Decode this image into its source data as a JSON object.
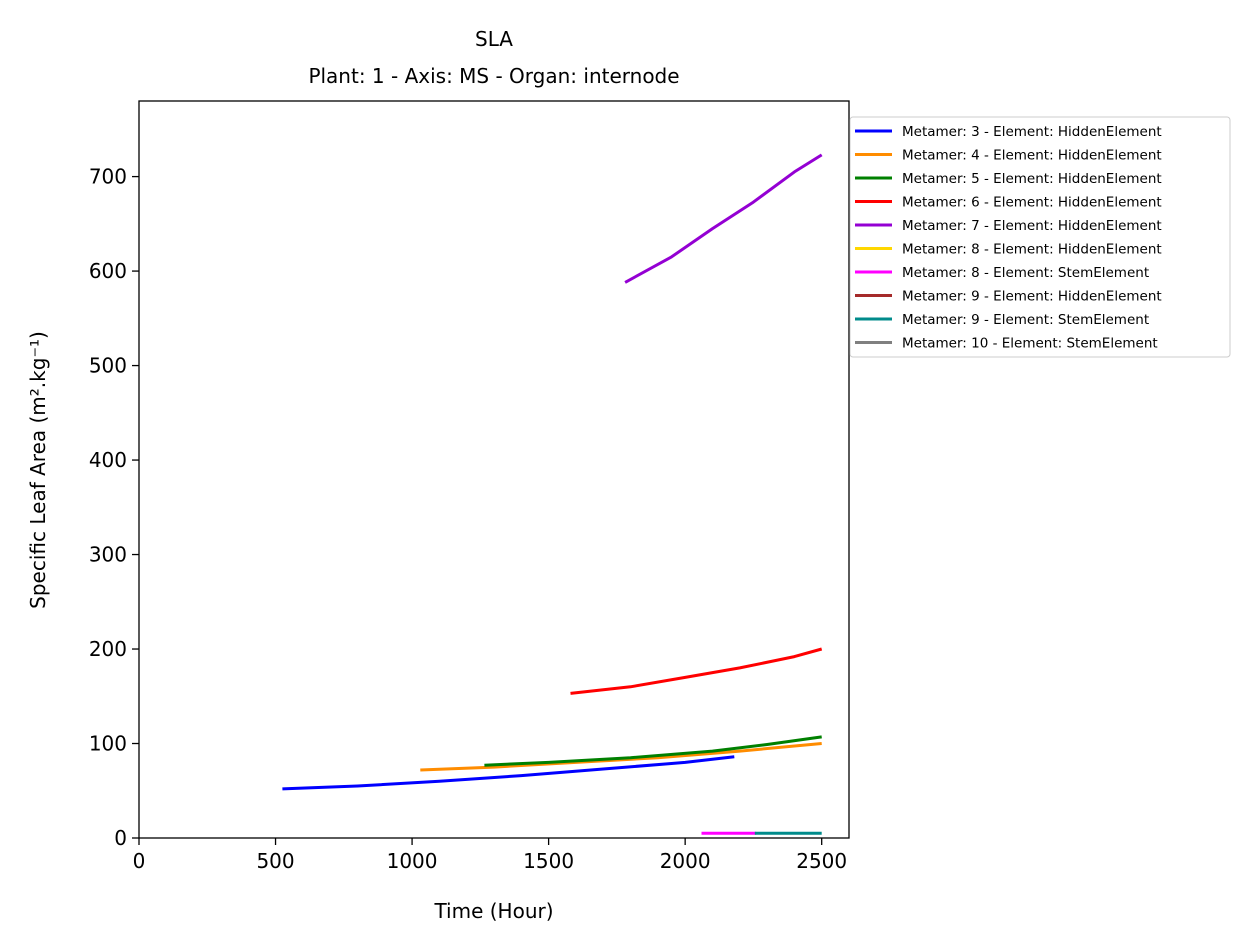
{
  "chart_data": {
    "type": "line",
    "title": "SLA",
    "subtitle": "Plant: 1 - Axis: MS - Organ: internode",
    "xlabel": "Time (Hour)",
    "ylabel": "Specific Leaf Area (m².kg⁻¹)",
    "xlim": [
      0,
      2600
    ],
    "ylim": [
      0,
      780
    ],
    "xticks": [
      0,
      500,
      1000,
      1500,
      2000,
      2500
    ],
    "yticks": [
      0,
      100,
      200,
      300,
      400,
      500,
      600,
      700
    ],
    "grid": false,
    "legend_position": "outside-top-right",
    "series": [
      {
        "name": "Metamer: 3 - Element: HiddenElement",
        "color": "#0000ff",
        "x": [
          525,
          800,
          1100,
          1400,
          1700,
          2000,
          2180
        ],
        "y": [
          52,
          55,
          60,
          66,
          73,
          80,
          86
        ]
      },
      {
        "name": "Metamer: 4 - Element: HiddenElement",
        "color": "#ff8c00",
        "x": [
          1030,
          1300,
          1600,
          1900,
          2200,
          2500
        ],
        "y": [
          72,
          75,
          80,
          85,
          92,
          100
        ]
      },
      {
        "name": "Metamer: 5 - Element: HiddenElement",
        "color": "#008000",
        "x": [
          1265,
          1500,
          1800,
          2100,
          2300,
          2500
        ],
        "y": [
          77,
          80,
          85,
          92,
          99,
          107
        ]
      },
      {
        "name": "Metamer: 6 - Element: HiddenElement",
        "color": "#ff0000",
        "x": [
          1580,
          1800,
          2000,
          2200,
          2400,
          2500
        ],
        "y": [
          153,
          160,
          170,
          180,
          192,
          200
        ]
      },
      {
        "name": "Metamer: 7 - Element: HiddenElement",
        "color": "#9400d3",
        "x": [
          1780,
          1950,
          2100,
          2250,
          2400,
          2500
        ],
        "y": [
          588,
          615,
          645,
          673,
          705,
          723
        ]
      },
      {
        "name": "Metamer: 8 - Element: HiddenElement",
        "color": "#ffd700",
        "x": [],
        "y": []
      },
      {
        "name": "Metamer: 8 - Element: StemElement",
        "color": "#ff00ff",
        "x": [
          2060,
          2260
        ],
        "y": [
          5,
          5
        ]
      },
      {
        "name": "Metamer: 9 - Element: HiddenElement",
        "color": "#a52a2a",
        "x": [],
        "y": []
      },
      {
        "name": "Metamer: 9 - Element: StemElement",
        "color": "#008b8b",
        "x": [
          2255,
          2500
        ],
        "y": [
          5,
          5
        ]
      },
      {
        "name": "Metamer: 10 - Element: StemElement",
        "color": "#808080",
        "x": [],
        "y": []
      }
    ]
  }
}
